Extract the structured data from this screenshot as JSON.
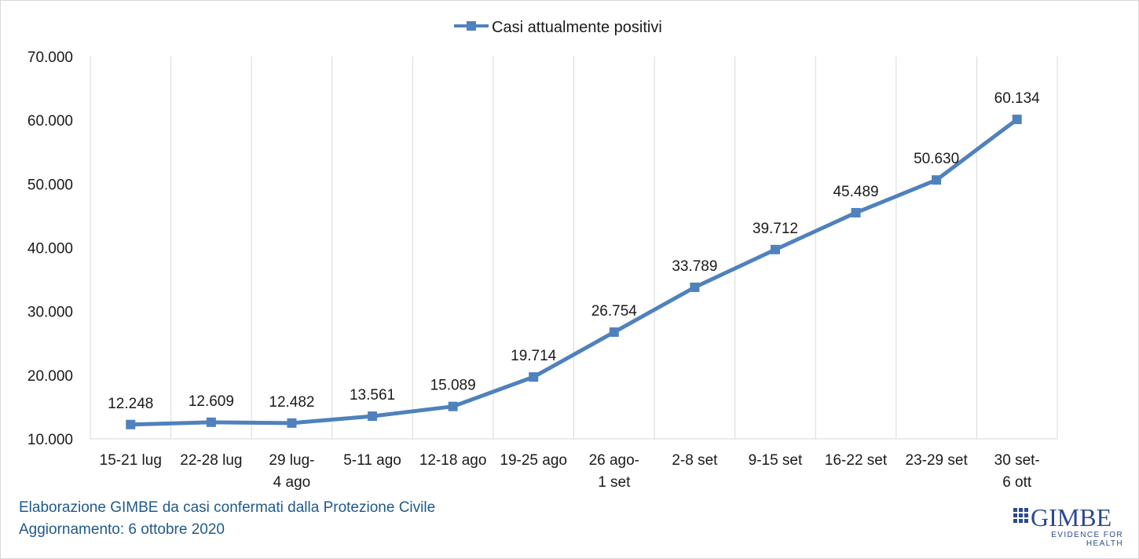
{
  "chart_data": {
    "type": "line",
    "legend": {
      "position": "top",
      "label": "Casi attualmente positivi"
    },
    "series": [
      {
        "name": "Casi attualmente positivi",
        "color": "#4f81bd",
        "values": [
          12248,
          12609,
          12482,
          13561,
          15089,
          19714,
          26754,
          33789,
          39712,
          45489,
          50630,
          60134
        ]
      }
    ],
    "categories": [
      [
        "15-21 lug"
      ],
      [
        "22-28 lug"
      ],
      [
        "29 lug-",
        "4 ago"
      ],
      [
        "5-11 ago"
      ],
      [
        "12-18 ago"
      ],
      [
        "19-25 ago"
      ],
      [
        "26 ago-",
        "1 set"
      ],
      [
        "2-8 set"
      ],
      [
        "9-15 set"
      ],
      [
        "16-22 set"
      ],
      [
        "23-29 set"
      ],
      [
        "30 set-",
        "6 ott"
      ]
    ],
    "data_labels": [
      "12.248",
      "12.609",
      "12.482",
      "13.561",
      "15.089",
      "19.714",
      "26.754",
      "33.789",
      "39.712",
      "45.489",
      "50.630",
      "60.134"
    ],
    "yticks": [
      10000,
      20000,
      30000,
      40000,
      50000,
      60000,
      70000
    ],
    "ytick_labels": [
      "10.000",
      "20.000",
      "30.000",
      "40.000",
      "50.000",
      "60.000",
      "70.000"
    ],
    "ylim": [
      10000,
      70000
    ],
    "grid": "vertical",
    "gridline_color": "#d9d9d9"
  },
  "footer": {
    "line1": "Elaborazione GIMBE da casi confermati dalla Protezione Civile",
    "line2": "Aggiornamento: 6 ottobre 2020"
  },
  "logo": {
    "wordmark": "GIMBE",
    "tagline": "EVIDENCE FOR HEALTH",
    "color": "#2b4a8e"
  }
}
